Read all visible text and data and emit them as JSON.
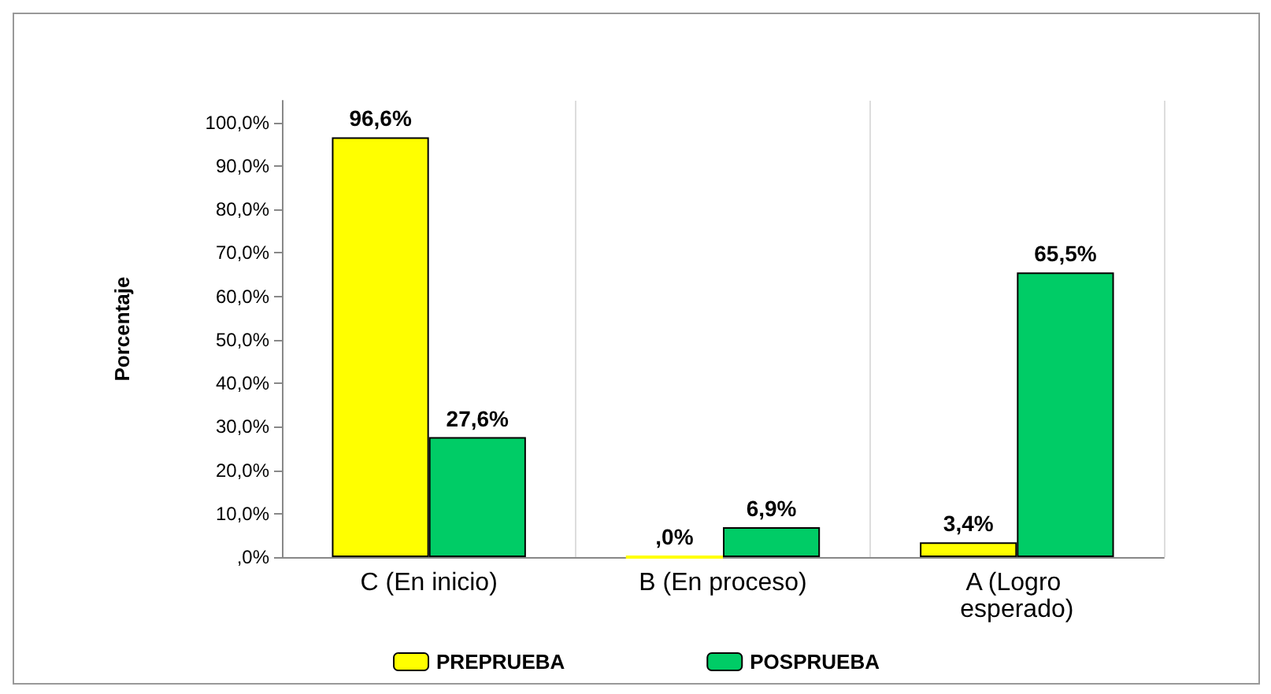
{
  "chart_data": {
    "type": "bar",
    "ylabel": "Porcentaje",
    "categories": [
      "C (En inicio)",
      "B (En proceso)",
      "A (Logro esperado)"
    ],
    "series": [
      {
        "name": "PREPRUEBA",
        "color": "#ffff00",
        "values": [
          96.6,
          0,
          3.4
        ],
        "value_labels": [
          "96,6%",
          ",0%",
          "3,4%"
        ]
      },
      {
        "name": "POSPRUEBA",
        "color": "#00cc66",
        "values": [
          27.6,
          6.9,
          65.5
        ],
        "value_labels": [
          "27,6%",
          "6,9%",
          "65,5%"
        ]
      }
    ],
    "ylim": [
      0,
      105
    ],
    "yticks": [
      {
        "value": 0,
        "label": ",0%"
      },
      {
        "value": 10,
        "label": "10,0%"
      },
      {
        "value": 20,
        "label": "20,0%"
      },
      {
        "value": 30,
        "label": "30,0%"
      },
      {
        "value": 40,
        "label": "40,0%"
      },
      {
        "value": 50,
        "label": "50,0%"
      },
      {
        "value": 60,
        "label": "60,0%"
      },
      {
        "value": 70,
        "label": "70,0%"
      },
      {
        "value": 80,
        "label": "80,0%"
      },
      {
        "value": 90,
        "label": "90,0%"
      },
      {
        "value": 100,
        "label": "100,0%"
      }
    ],
    "grid": "x",
    "legend": "bottom"
  }
}
